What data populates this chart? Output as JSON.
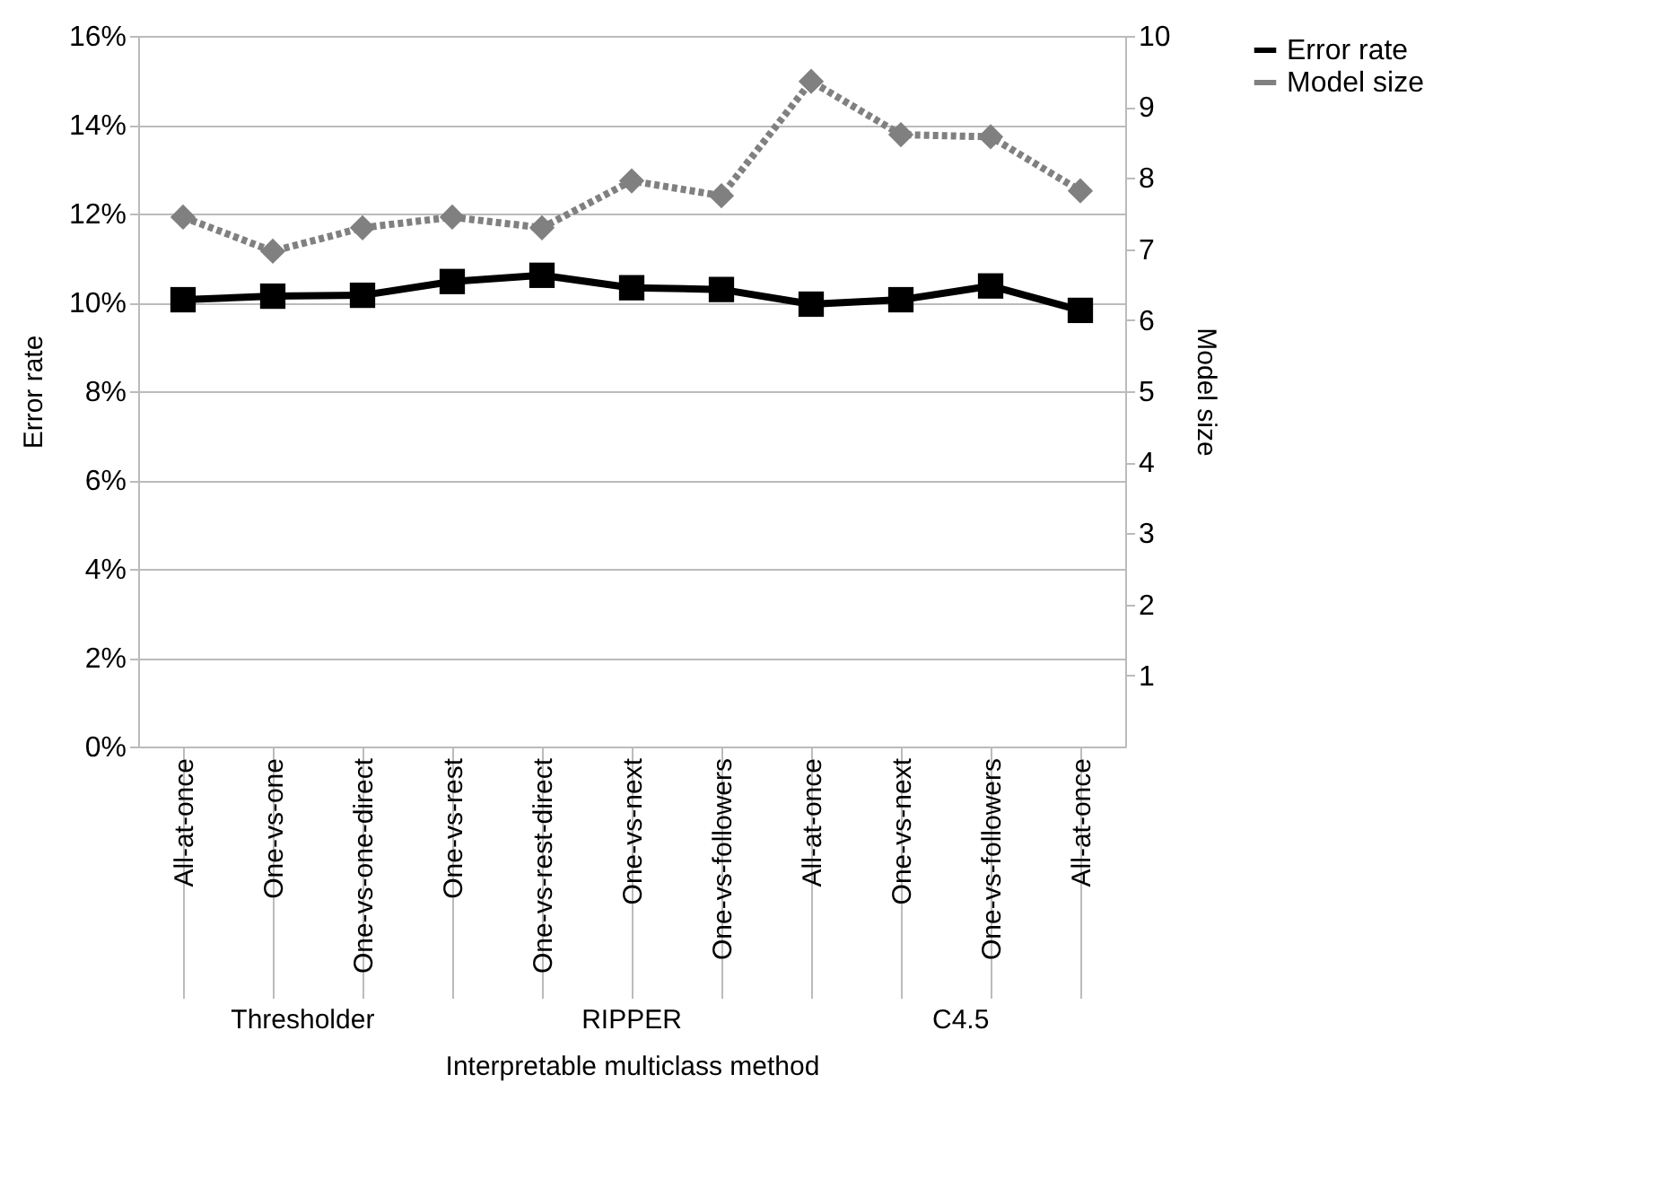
{
  "chart_data": {
    "type": "line",
    "categories": [
      "All-at-once",
      "One-vs-one",
      "One-vs-one-direct",
      "One-vs-rest",
      "One-vs-rest-direct",
      "One-vs-next",
      "One-vs-followers",
      "All-at-once",
      "One-vs-next",
      "One-vs-followers",
      "All-at-once"
    ],
    "series": [
      {
        "name": "Error rate",
        "color": "#000000",
        "marker": "square",
        "line_style": "solid",
        "values": [
          10.06,
          10.14,
          10.16,
          10.47,
          10.61,
          10.33,
          10.29,
          9.96,
          10.06,
          10.37,
          9.82
        ]
      },
      {
        "name": "Model size",
        "color": "#808080",
        "marker": "diamond",
        "line_style": "dotted",
        "axis": "y2",
        "values": [
          7.45,
          6.97,
          7.3,
          7.45,
          7.3,
          7.96,
          7.75,
          9.36,
          8.61,
          8.58,
          7.82
        ]
      }
    ],
    "xlabel": "Interpretable multiclass method",
    "ylabel": "Error rate",
    "y2label": "Model size",
    "ylim": [
      0,
      16
    ],
    "yticks": [
      {
        "value": 0,
        "label": "0%"
      },
      {
        "value": 2,
        "label": "2%"
      },
      {
        "value": 4,
        "label": "4%"
      },
      {
        "value": 6,
        "label": "6%"
      },
      {
        "value": 8,
        "label": "8%"
      },
      {
        "value": 10,
        "label": "10%"
      },
      {
        "value": 12,
        "label": "12%"
      },
      {
        "value": 14,
        "label": "14%"
      },
      {
        "value": 16,
        "label": "16%"
      }
    ],
    "y2lim": [
      0,
      10
    ],
    "y2ticks": [
      1,
      2,
      3,
      4,
      5,
      6,
      7,
      8,
      9,
      10
    ],
    "annotations": [
      "Thresholder",
      "RIPPER",
      "C4.5"
    ],
    "grid": "y",
    "legend": "right"
  }
}
